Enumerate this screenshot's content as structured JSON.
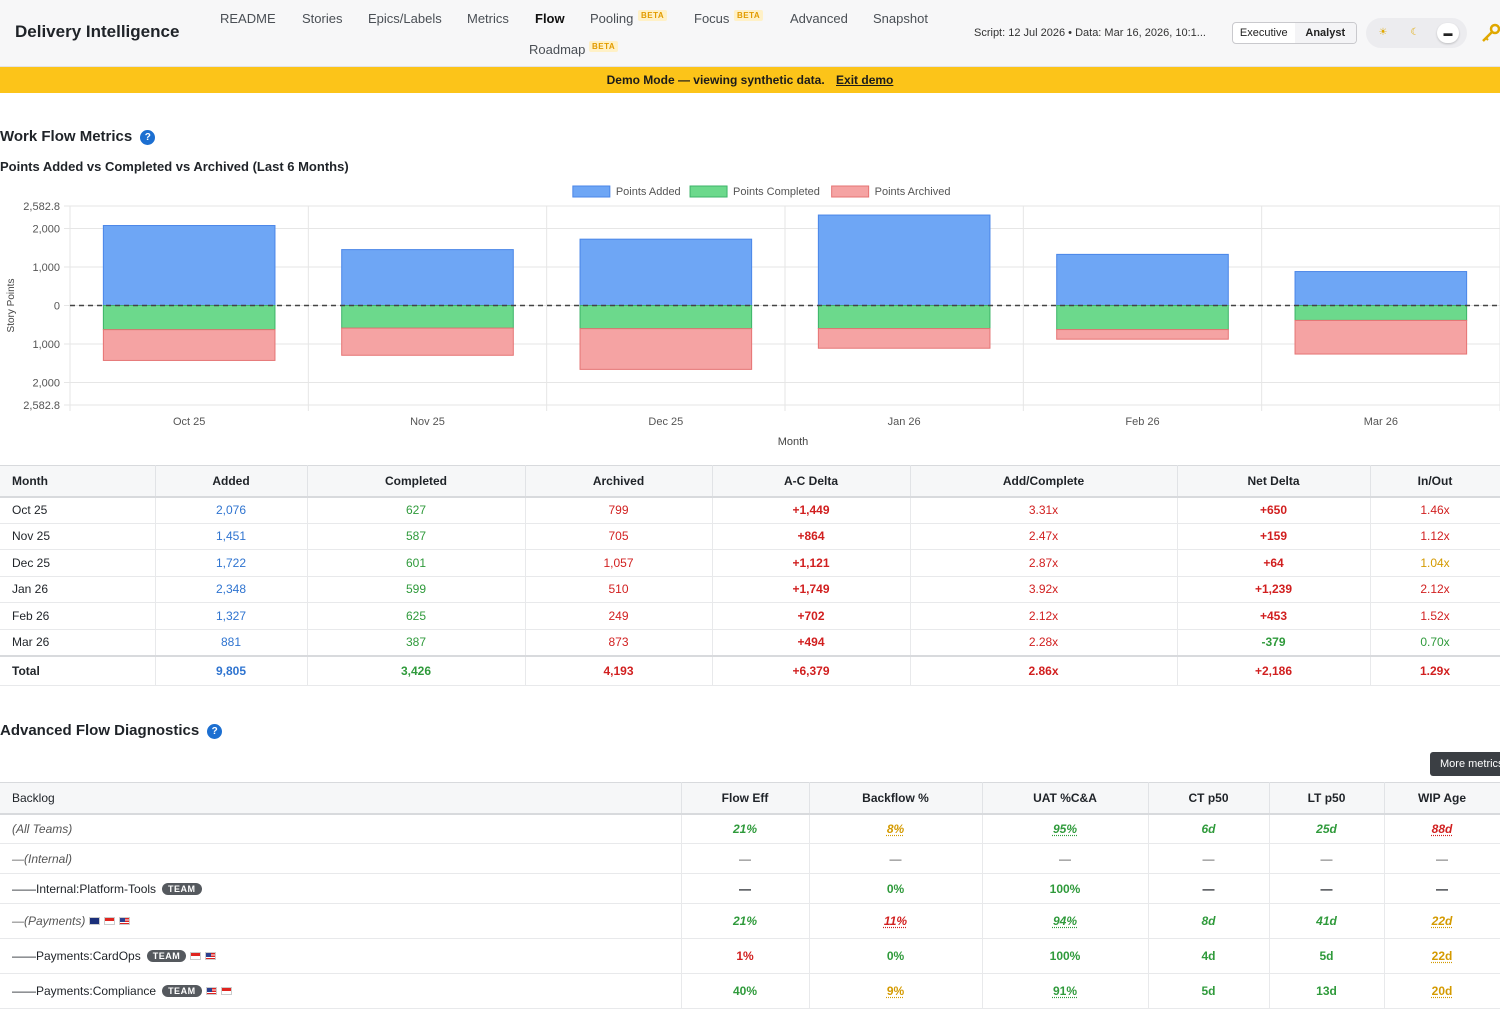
{
  "header": {
    "brand": "Delivery Intelligence",
    "nav": [
      {
        "label": "README",
        "beta": false
      },
      {
        "label": "Stories",
        "beta": false
      },
      {
        "label": "Epics/Labels",
        "beta": false
      },
      {
        "label": "Metrics",
        "beta": false
      },
      {
        "label": "Flow",
        "beta": false,
        "active": true
      },
      {
        "label": "Pooling",
        "beta": true
      },
      {
        "label": "Focus",
        "beta": true
      },
      {
        "label": "Advanced",
        "beta": false
      },
      {
        "label": "Snapshot",
        "beta": false
      },
      {
        "label": "Roadmap",
        "beta": true
      }
    ],
    "beta_label": "BETA",
    "script_info": "Script: 12 Jul 2026 • Data: Mar 16, 2026, 10:1...",
    "roles": [
      "Executive",
      "Analyst"
    ],
    "selected_role": "Analyst",
    "themes": [
      {
        "icon": "sun-icon",
        "glyph": "☀"
      },
      {
        "icon": "moon-icon",
        "glyph": "☾"
      },
      {
        "icon": "monitor-icon",
        "glyph": "▬"
      }
    ],
    "selected_theme": "monitor-icon",
    "key_icon": "key-icon"
  },
  "banner": {
    "text": "Demo Mode — viewing synthetic data.",
    "link": "Exit demo",
    "color": "#fcc419"
  },
  "flow": {
    "title": "Work Flow Metrics",
    "help_glyph": "?",
    "chart_title": "Points Added vs Completed vs Archived (Last 6 Months)"
  },
  "chart_data": {
    "type": "bar",
    "stacked_diverging": true,
    "categories": [
      "Oct 25",
      "Nov 25",
      "Dec 25",
      "Jan 26",
      "Feb 26",
      "Mar 26"
    ],
    "series": [
      {
        "name": "Points Added",
        "values": [
          2076,
          1451,
          1722,
          2348,
          1327,
          881
        ],
        "color": "#6ea6f5",
        "direction": "up"
      },
      {
        "name": "Points Completed",
        "values": [
          627,
          587,
          601,
          599,
          625,
          387
        ],
        "color": "#6cd98c",
        "direction": "down"
      },
      {
        "name": "Points Archived",
        "values": [
          799,
          705,
          1057,
          510,
          249,
          873
        ],
        "color": "#f5a3a3",
        "direction": "down"
      }
    ],
    "xlabel": "Month",
    "ylabel": "Story Points",
    "ylim": [
      -2582.8,
      2582.8
    ],
    "yticks": [
      2582.8,
      2000,
      1000,
      0,
      -1000,
      -2000,
      -2582.8
    ],
    "ytick_labels": [
      "2,582.8",
      "2,000",
      "1,000",
      "0",
      "1,000",
      "2,000",
      "2,582.8"
    ],
    "zero_line": "dashed",
    "grid": true,
    "legend": "top-center"
  },
  "flow_table": {
    "headers": [
      "Month",
      "Added",
      "Completed",
      "Archived",
      "A-C Delta",
      "Add/Complete",
      "Net Delta",
      "In/Out"
    ],
    "rows": [
      {
        "month": "Oct 25",
        "added": "2,076",
        "completed": "627",
        "archived": "799",
        "ac_delta": "+1,449",
        "add_complete": "3.31x",
        "net_delta": "+650",
        "in_out": "1.46x",
        "in_out_color": "red",
        "net_color": "red"
      },
      {
        "month": "Nov 25",
        "added": "1,451",
        "completed": "587",
        "archived": "705",
        "ac_delta": "+864",
        "add_complete": "2.47x",
        "net_delta": "+159",
        "in_out": "1.12x",
        "in_out_color": "red",
        "net_color": "red"
      },
      {
        "month": "Dec 25",
        "added": "1,722",
        "completed": "601",
        "archived": "1,057",
        "ac_delta": "+1,121",
        "add_complete": "2.87x",
        "net_delta": "+64",
        "in_out": "1.04x",
        "in_out_color": "amber",
        "net_color": "red"
      },
      {
        "month": "Jan 26",
        "added": "2,348",
        "completed": "599",
        "archived": "510",
        "ac_delta": "+1,749",
        "add_complete": "3.92x",
        "net_delta": "+1,239",
        "in_out": "2.12x",
        "in_out_color": "red",
        "net_color": "red"
      },
      {
        "month": "Feb 26",
        "added": "1,327",
        "completed": "625",
        "archived": "249",
        "ac_delta": "+702",
        "add_complete": "2.12x",
        "net_delta": "+453",
        "in_out": "1.52x",
        "in_out_color": "red",
        "net_color": "red"
      },
      {
        "month": "Mar 26",
        "added": "881",
        "completed": "387",
        "archived": "873",
        "ac_delta": "+494",
        "add_complete": "2.28x",
        "net_delta": "-379",
        "in_out": "0.70x",
        "in_out_color": "green",
        "net_color": "green"
      }
    ],
    "total": {
      "month": "Total",
      "added": "9,805",
      "completed": "3,426",
      "archived": "4,193",
      "ac_delta": "+6,379",
      "add_complete": "2.86x",
      "net_delta": "+2,186",
      "in_out": "1.29x"
    }
  },
  "diagnostics": {
    "title": "Advanced Flow Diagnostics",
    "help_glyph": "?",
    "more_button": "More metrics",
    "headers": [
      "Backlog",
      "Flow Eff",
      "Backflow %",
      "UAT %C&A",
      "CT p50",
      "LT p50",
      "WIP Age"
    ],
    "team_badge": "TEAM",
    "rows": [
      {
        "name": "(All Teams)",
        "kind": "all",
        "flow_eff": "21%",
        "backflow": "8%",
        "uat": "95%",
        "ct": "6d",
        "lt": "25d",
        "wip": "88d"
      },
      {
        "name": "—(Internal)",
        "kind": "group",
        "flow_eff": "—",
        "backflow": "—",
        "uat": "—",
        "ct": "—",
        "lt": "—",
        "wip": "—"
      },
      {
        "name": "——Internal:Platform-Tools",
        "kind": "team",
        "flags": [],
        "flow_eff": "—",
        "backflow": "0%",
        "uat": "100%",
        "ct": "—",
        "lt": "—",
        "wip": "—"
      },
      {
        "name": "—(Payments)",
        "kind": "group",
        "flags": [
          "au",
          "sg",
          "us"
        ],
        "flow_eff": "21%",
        "backflow": "11%",
        "uat": "94%",
        "ct": "8d",
        "lt": "41d",
        "wip": "22d"
      },
      {
        "name": "——Payments:CardOps",
        "kind": "team",
        "flags": [
          "sg",
          "us"
        ],
        "flow_eff": "1%",
        "backflow": "0%",
        "uat": "100%",
        "ct": "4d",
        "lt": "5d",
        "wip": "22d"
      },
      {
        "name": "——Payments:Compliance",
        "kind": "team",
        "flags": [
          "us",
          "sg"
        ],
        "flow_eff": "40%",
        "backflow": "9%",
        "uat": "91%",
        "ct": "5d",
        "lt": "13d",
        "wip": "20d"
      }
    ]
  }
}
